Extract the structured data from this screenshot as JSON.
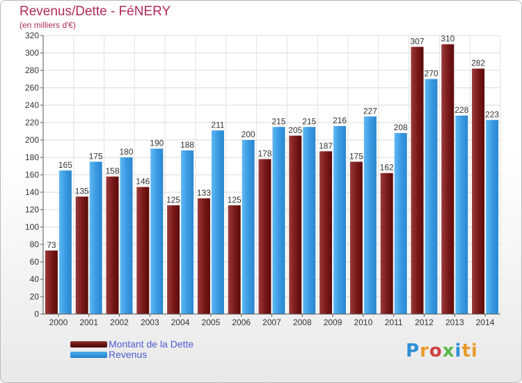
{
  "header": {
    "title": "Revenus/Dette - FéNERY",
    "subtitle": "(en milliers d'€)"
  },
  "legend": {
    "dette_label": "Montant de la Dette",
    "revenus_label": "Revenus"
  },
  "logo": {
    "text": "Proxiti",
    "letters": [
      "P",
      "r",
      "o",
      "x",
      "i",
      "ti"
    ]
  },
  "chart_data": {
    "type": "bar",
    "title": "Revenus/Dette - FéNERY",
    "subtitle": "(en milliers d'€)",
    "categories": [
      "2000",
      "2001",
      "2002",
      "2003",
      "2004",
      "2005",
      "2006",
      "2007",
      "2008",
      "2009",
      "2010",
      "2011",
      "2012",
      "2013",
      "2014"
    ],
    "series": [
      {
        "name": "Montant de la Dette",
        "color": "#7b1a1a",
        "values": [
          73,
          135,
          158,
          146,
          125,
          133,
          125,
          178,
          205,
          187,
          175,
          162,
          307,
          310,
          282
        ]
      },
      {
        "name": "Revenus",
        "color": "#3a9be3",
        "values": [
          165,
          175,
          180,
          190,
          188,
          211,
          200,
          215,
          215,
          216,
          227,
          208,
          270,
          228,
          223
        ]
      }
    ],
    "ylim": [
      0,
      320
    ],
    "yticks": [
      0,
      20,
      40,
      60,
      80,
      100,
      120,
      140,
      160,
      180,
      200,
      220,
      240,
      260,
      280,
      300,
      320
    ],
    "grid": true,
    "legend_position": "bottom-left"
  }
}
